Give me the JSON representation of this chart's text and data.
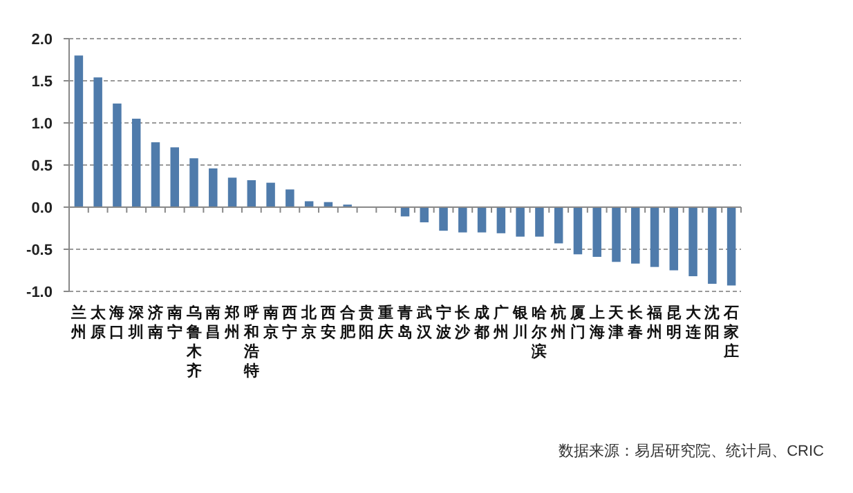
{
  "chart_data": {
    "type": "bar",
    "categories": [
      "兰州",
      "太原",
      "海口",
      "深圳",
      "济南",
      "南宁",
      "乌鲁木齐",
      "南昌",
      "郑州",
      "呼和浩特",
      "南京",
      "西宁",
      "北京",
      "西安",
      "合肥",
      "贵阳",
      "重庆",
      "青岛",
      "武汉",
      "宁波",
      "长沙",
      "成都",
      "广州",
      "银川",
      "哈尔滨",
      "杭州",
      "厦门",
      "上海",
      "天津",
      "长春",
      "福州",
      "昆明",
      "大连",
      "沈阳",
      "石家庄"
    ],
    "values": [
      1.8,
      1.54,
      1.23,
      1.05,
      0.77,
      0.71,
      0.58,
      0.46,
      0.35,
      0.32,
      0.29,
      0.21,
      0.07,
      0.06,
      0.03,
      0,
      0,
      -0.11,
      -0.18,
      -0.28,
      -0.3,
      -0.3,
      -0.31,
      -0.35,
      -0.35,
      -0.43,
      -0.56,
      -0.59,
      -0.65,
      -0.67,
      -0.71,
      -0.75,
      -0.82,
      -0.91,
      -0.93
    ],
    "color": "#4f7bab",
    "ylim": [
      -1.0,
      2.0
    ],
    "yticks": [
      {
        "value": -1.0,
        "label": "-1.0"
      },
      {
        "value": -0.5,
        "label": "-0.5"
      },
      {
        "value": 0,
        "label": "0.0"
      },
      {
        "value": 0.5,
        "label": "0.5"
      },
      {
        "value": 1.0,
        "label": "1.0"
      },
      {
        "value": 1.5,
        "label": "1.5"
      },
      {
        "value": 2.0,
        "label": "2.0"
      }
    ],
    "grid": "y",
    "annotations": [
      "数据来源：易居研究院、统计局、CRIC"
    ]
  }
}
